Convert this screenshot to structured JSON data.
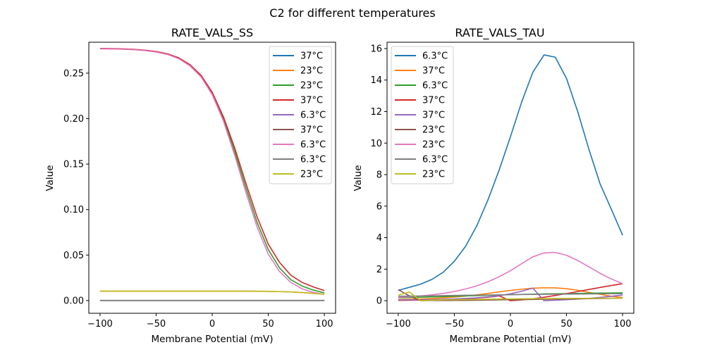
{
  "figure": {
    "suptitle": "C2 for different temperatures"
  },
  "chart_data": [
    {
      "type": "line",
      "title": "RATE_VALS_SS",
      "xlabel": "Membrane Potential (mV)",
      "ylabel": "Value",
      "xlim": [
        -110,
        110
      ],
      "ylim": [
        -0.014,
        0.284
      ],
      "xticks": [
        -100,
        -50,
        0,
        50,
        100
      ],
      "xtick_labels": [
        "−100",
        "−50",
        "0",
        "50",
        "100"
      ],
      "yticks": [
        0.0,
        0.05,
        0.1,
        0.15,
        0.2,
        0.25
      ],
      "ytick_labels": [
        "0.00",
        "0.05",
        "0.10",
        "0.15",
        "0.20",
        "0.25"
      ],
      "grid": false,
      "legend_position": "upper-right",
      "x": [
        -100,
        -90,
        -80,
        -70,
        -60,
        -50,
        -40,
        -30,
        -20,
        -10,
        0,
        10,
        20,
        30,
        40,
        50,
        60,
        70,
        80,
        90,
        100
      ],
      "series": [
        {
          "name": "37°C",
          "color": "#1f77b4",
          "values": [
            0.0001,
            0.0001,
            0.0001,
            0.0001,
            0.0001,
            0.0001,
            0.0001,
            0.0001,
            0.0001,
            0.0001,
            0.0001,
            0.0001,
            0.0001,
            0.0001,
            0.0001,
            0.0001,
            0.0001,
            0.0001,
            0.0001,
            0.0001,
            0.0001
          ]
        },
        {
          "name": "23°C",
          "color": "#ff7f0e",
          "values": [
            0.0102,
            0.0102,
            0.0102,
            0.0102,
            0.0102,
            0.0102,
            0.0102,
            0.0102,
            0.0102,
            0.0102,
            0.0102,
            0.0102,
            0.0102,
            0.0102,
            0.0101,
            0.01,
            0.0098,
            0.0095,
            0.0089,
            0.008,
            0.007
          ]
        },
        {
          "name": "23°C",
          "color": "#2ca02c",
          "values": [
            0.277,
            0.2768,
            0.2765,
            0.276,
            0.275,
            0.2735,
            0.271,
            0.2665,
            0.259,
            0.247,
            0.228,
            0.2,
            0.164,
            0.124,
            0.086,
            0.056,
            0.036,
            0.023,
            0.016,
            0.0115,
            0.0085
          ]
        },
        {
          "name": "37°C",
          "color": "#d62728",
          "values": [
            0.2772,
            0.277,
            0.2767,
            0.2762,
            0.2753,
            0.2738,
            0.2713,
            0.267,
            0.2595,
            0.2478,
            0.229,
            0.202,
            0.168,
            0.129,
            0.092,
            0.062,
            0.042,
            0.028,
            0.02,
            0.015,
            0.011
          ]
        },
        {
          "name": "6.3°C",
          "color": "#9467bd",
          "values": [
            0.0001,
            0.0001,
            0.0001,
            0.0001,
            0.0001,
            0.0001,
            0.0001,
            0.0001,
            0.0001,
            0.0001,
            0.0001,
            0.0001,
            0.0001,
            0.0001,
            0.0001,
            0.0001,
            0.0001,
            0.0001,
            0.0001,
            0.0001,
            0.0001
          ]
        },
        {
          "name": "37°C",
          "color": "#8c564b",
          "values": [
            0.0001,
            0.0001,
            0.0001,
            0.0001,
            0.0001,
            0.0001,
            0.0001,
            0.0001,
            0.0001,
            0.0001,
            0.0001,
            0.0001,
            0.0001,
            0.0001,
            0.0001,
            0.0001,
            0.0001,
            0.0001,
            0.0001,
            0.0001,
            0.0001
          ]
        },
        {
          "name": "6.3°C",
          "color": "#e377c2",
          "values": [
            0.2768,
            0.2766,
            0.2763,
            0.2758,
            0.2748,
            0.2732,
            0.2706,
            0.266,
            0.2582,
            0.246,
            0.2265,
            0.1975,
            0.16,
            0.119,
            0.081,
            0.051,
            0.032,
            0.02,
            0.013,
            0.009,
            0.0068
          ]
        },
        {
          "name": "6.3°C",
          "color": "#7f7f7f",
          "values": [
            0.0002,
            0.0002,
            0.0002,
            0.0002,
            0.0002,
            0.0002,
            0.0002,
            0.0002,
            0.0002,
            0.0002,
            0.0002,
            0.0002,
            0.0002,
            0.0002,
            0.0002,
            0.0002,
            0.0002,
            0.0002,
            0.0002,
            0.0002,
            0.0002
          ]
        },
        {
          "name": "23°C",
          "color": "#bcbd22",
          "values": [
            0.0104,
            0.0104,
            0.0104,
            0.0104,
            0.0104,
            0.0104,
            0.0104,
            0.0104,
            0.0104,
            0.0104,
            0.0104,
            0.0104,
            0.0104,
            0.0104,
            0.0103,
            0.0101,
            0.0099,
            0.0095,
            0.0088,
            0.0078,
            0.0068
          ]
        }
      ]
    },
    {
      "type": "line",
      "title": "RATE_VALS_TAU",
      "xlabel": "Membrane Potential (mV)",
      "ylabel": "Value",
      "xlim": [
        -110,
        110
      ],
      "ylim": [
        -0.8,
        16.4
      ],
      "xticks": [
        -100,
        -50,
        0,
        50,
        100
      ],
      "xtick_labels": [
        "−100",
        "−50",
        "0",
        "50",
        "100"
      ],
      "yticks": [
        0,
        2,
        4,
        6,
        8,
        10,
        12,
        14,
        16
      ],
      "ytick_labels": [
        "0",
        "2",
        "4",
        "6",
        "8",
        "10",
        "12",
        "14",
        "16"
      ],
      "grid": false,
      "legend_position": "upper-left",
      "x": [
        -100,
        -90,
        -80,
        -70,
        -60,
        -50,
        -40,
        -30,
        -20,
        -10,
        0,
        10,
        20,
        30,
        40,
        50,
        60,
        70,
        80,
        90,
        100
      ],
      "series": [
        {
          "name": "6.3°C",
          "color": "#1f77b4",
          "values": [
            0.65,
            0.85,
            1.05,
            1.35,
            1.8,
            2.5,
            3.45,
            4.75,
            6.4,
            8.3,
            10.4,
            12.6,
            14.5,
            15.6,
            15.45,
            14.1,
            12.0,
            9.6,
            7.4,
            5.8,
            4.15
          ]
        },
        {
          "name": "37°C",
          "color": "#ff7f0e",
          "values": [
            0.07,
            0.09,
            0.11,
            0.14,
            0.18,
            0.23,
            0.29,
            0.37,
            0.46,
            0.56,
            0.65,
            0.73,
            0.79,
            0.82,
            0.81,
            0.76,
            0.66,
            0.53,
            0.4,
            0.28,
            0.2
          ]
        },
        {
          "name": "6.3°C",
          "color": "#2ca02c",
          "values": [
            0.18,
            0.2,
            0.22,
            0.24,
            0.26,
            0.28,
            0.3,
            0.32,
            0.34,
            0.36,
            0.38,
            0.4,
            0.41,
            0.43,
            0.44,
            0.45,
            0.46,
            0.47,
            0.48,
            0.49,
            0.5
          ]
        },
        {
          "name": "37°C",
          "color": "#d62728",
          "values": [
            0.02,
            0.03,
            0.04,
            0.05,
            0.07,
            0.09,
            0.12,
            0.16,
            0.22,
            0.3,
            0.0,
            0.05,
            0.12,
            0.22,
            0.33,
            0.45,
            0.58,
            0.71,
            0.84,
            0.96,
            1.08
          ]
        },
        {
          "name": "37°C",
          "color": "#9467bd",
          "values": [
            0.04,
            0.05,
            0.06,
            0.07,
            0.09,
            0.11,
            0.14,
            0.18,
            0.24,
            0.32,
            0.44,
            0.6,
            0.8,
            0.0,
            0.03,
            0.06,
            0.1,
            0.15,
            0.21,
            0.28,
            0.36
          ]
        },
        {
          "name": "23°C",
          "color": "#8c564b",
          "values": [
            0.7,
            0.3,
            0.0,
            0.01,
            0.01,
            0.02,
            0.02,
            0.03,
            0.04,
            0.05,
            0.06,
            0.07,
            0.08,
            0.09,
            0.1,
            0.11,
            0.12,
            0.13,
            0.14,
            0.15,
            0.16
          ]
        },
        {
          "name": "23°C",
          "color": "#e377c2",
          "values": [
            0.2,
            0.25,
            0.3,
            0.37,
            0.46,
            0.58,
            0.74,
            0.94,
            1.2,
            1.52,
            1.9,
            2.35,
            2.78,
            3.03,
            3.06,
            2.88,
            2.55,
            2.15,
            1.73,
            1.38,
            1.07
          ]
        },
        {
          "name": "6.3°C",
          "color": "#7f7f7f",
          "values": [
            0.28,
            0.29,
            0.3,
            0.31,
            0.32,
            0.33,
            0.34,
            0.35,
            0.36,
            0.37,
            0.38,
            0.39,
            0.4,
            0.41,
            0.41,
            0.42,
            0.42,
            0.43,
            0.43,
            0.44,
            0.44
          ]
        },
        {
          "name": "23°C",
          "color": "#bcbd22",
          "values": [
            0.35,
            0.55,
            0.0,
            0.03,
            0.05,
            0.06,
            0.07,
            0.08,
            0.09,
            0.1,
            0.11,
            0.12,
            0.13,
            0.13,
            0.14,
            0.14,
            0.15,
            0.15,
            0.16,
            0.16,
            0.16
          ]
        }
      ]
    }
  ]
}
